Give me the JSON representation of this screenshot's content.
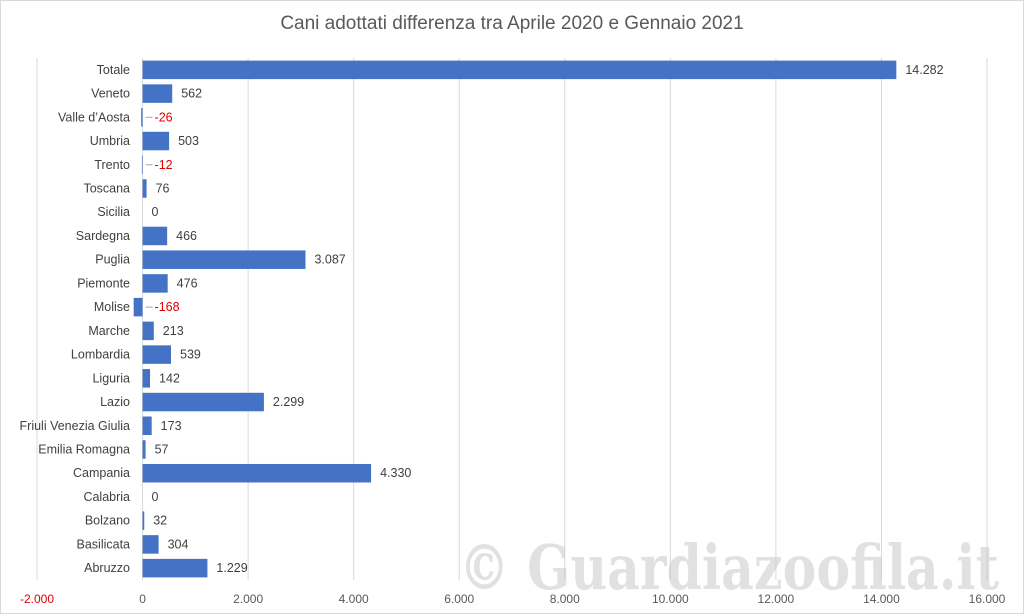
{
  "chart_data": {
    "type": "bar",
    "orientation": "horizontal",
    "title": "Cani adottati differenza tra Aprile 2020 e Gennaio 2021",
    "categories": [
      "Totale",
      "Veneto",
      "Valle d’Aosta",
      "Umbria",
      "Trento",
      "Toscana",
      "Sicilia",
      "Sardegna",
      "Puglia",
      "Piemonte",
      "Molise",
      "Marche",
      "Lombardia",
      "Liguria",
      "Lazio",
      "Friuli Venezia Giulia",
      "Emilia Romagna",
      "Campania",
      "Calabria",
      "Bolzano",
      "Basilicata",
      "Abruzzo"
    ],
    "values": [
      14282,
      562,
      -26,
      503,
      -12,
      76,
      0,
      466,
      3087,
      476,
      -168,
      213,
      539,
      142,
      2299,
      173,
      57,
      4330,
      0,
      32,
      304,
      1229
    ],
    "value_labels": [
      "14.282",
      "562",
      "-26",
      "503",
      "-12",
      "76",
      "0",
      "466",
      "3.087",
      "476",
      "-168",
      "213",
      "539",
      "142",
      "2.299",
      "173",
      "57",
      "4.330",
      "0",
      "32",
      "304",
      "1.229"
    ],
    "xlim": [
      -2000,
      16000
    ],
    "x_ticks": [
      -2000,
      0,
      2000,
      4000,
      6000,
      8000,
      10000,
      12000,
      14000,
      16000
    ],
    "x_tick_labels": [
      "-2.000",
      "0",
      "2.000",
      "4.000",
      "6.000",
      "8.000",
      "10.000",
      "12.000",
      "14.000",
      "16.000"
    ],
    "grid": "vertical",
    "legend": "none"
  },
  "colors": {
    "bar": "#4472c4",
    "negative_label": "#e00000",
    "grid": "#d9d9d9"
  },
  "watermark": {
    "text": "© Guardiazoofila.it"
  }
}
